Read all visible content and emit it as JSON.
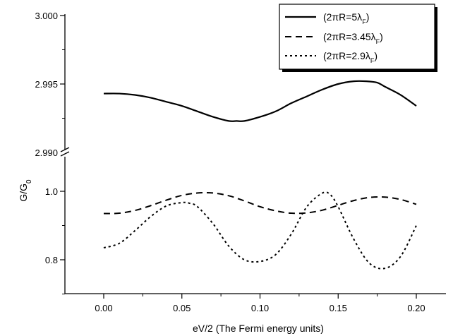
{
  "chart_data": {
    "type": "line",
    "xlabel": "eV/2 (The Fermi energy units)",
    "ylabel_main": "G/G",
    "ylabel_sub": "0",
    "x_ticks": [
      "0.00",
      "0.05",
      "0.10",
      "0.15",
      "0.20"
    ],
    "upper_panel": {
      "ylim": [
        2.99,
        3.0
      ],
      "y_ticks": [
        "2.990",
        "2.995",
        "3.000"
      ]
    },
    "lower_panel": {
      "ylim": [
        0.7,
        1.0
      ],
      "y_ticks": [
        "0.8",
        "1.0"
      ]
    },
    "series": [
      {
        "name": "(2πR=5λ",
        "name_sub": "F",
        "name_close": ")",
        "panel": "upper",
        "style": "solid",
        "x": [
          0.0,
          0.01,
          0.02,
          0.03,
          0.04,
          0.05,
          0.06,
          0.07,
          0.08,
          0.085,
          0.09,
          0.1,
          0.11,
          0.12,
          0.13,
          0.14,
          0.15,
          0.16,
          0.168,
          0.175,
          0.18,
          0.19,
          0.2
        ],
        "y": [
          2.9943,
          2.9943,
          2.9942,
          2.994,
          2.9937,
          2.9934,
          2.993,
          2.9926,
          2.9923,
          2.9923,
          2.9923,
          2.9926,
          2.993,
          2.9936,
          2.9941,
          2.9946,
          2.995,
          2.9952,
          2.9952,
          2.9951,
          2.9948,
          2.9942,
          2.9934
        ]
      },
      {
        "name": "(2πR=3.45λ",
        "name_sub": "F",
        "name_close": ")",
        "panel": "lower",
        "style": "dashed",
        "x": [
          0.0,
          0.01,
          0.02,
          0.03,
          0.04,
          0.05,
          0.06,
          0.07,
          0.08,
          0.09,
          0.1,
          0.11,
          0.12,
          0.13,
          0.14,
          0.15,
          0.16,
          0.17,
          0.18,
          0.19,
          0.2
        ],
        "y": [
          0.935,
          0.936,
          0.944,
          0.958,
          0.974,
          0.988,
          0.995,
          0.995,
          0.987,
          0.972,
          0.955,
          0.943,
          0.936,
          0.937,
          0.945,
          0.959,
          0.973,
          0.982,
          0.983,
          0.976,
          0.962
        ]
      },
      {
        "name": "(2πR=2.9λ",
        "name_sub": "F",
        "name_close": ")",
        "panel": "lower",
        "style": "dotted",
        "x": [
          0.0,
          0.01,
          0.02,
          0.03,
          0.04,
          0.05,
          0.055,
          0.06,
          0.07,
          0.08,
          0.09,
          0.1,
          0.11,
          0.12,
          0.13,
          0.14,
          0.145,
          0.15,
          0.16,
          0.17,
          0.18,
          0.19,
          0.2
        ],
        "y": [
          0.835,
          0.848,
          0.885,
          0.926,
          0.957,
          0.967,
          0.965,
          0.955,
          0.905,
          0.84,
          0.8,
          0.795,
          0.815,
          0.875,
          0.955,
          0.995,
          0.99,
          0.955,
          0.86,
          0.79,
          0.775,
          0.81,
          0.9
        ]
      }
    ]
  }
}
